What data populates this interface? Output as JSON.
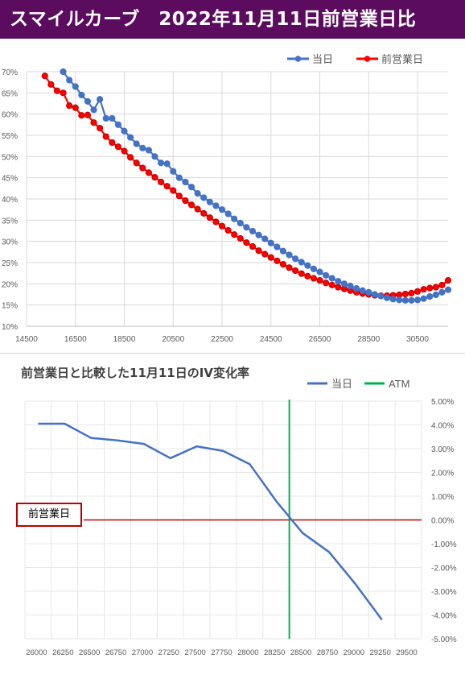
{
  "banner": {
    "title": "スマイルカーブ　2022年11月11日前営業日比"
  },
  "chart_data": [
    {
      "type": "line",
      "title": "",
      "xlim": [
        14500,
        31750
      ],
      "ylim": [
        10,
        70
      ],
      "x_ticks": [
        "14500",
        "16500",
        "18500",
        "20500",
        "22500",
        "24500",
        "26500",
        "28500",
        "30500"
      ],
      "y_ticks": [
        "10%",
        "15%",
        "20%",
        "25%",
        "30%",
        "35%",
        "40%",
        "45%",
        "50%",
        "55%",
        "60%",
        "65%",
        "70%"
      ],
      "legend": "top-right",
      "grid": true,
      "series": [
        {
          "name": "当日",
          "color": "#4472c4",
          "points": [
            [
              16000,
              70
            ],
            [
              16250,
              68
            ],
            [
              16500,
              66.5
            ],
            [
              16750,
              64.5
            ],
            [
              17000,
              63
            ],
            [
              17250,
              61
            ],
            [
              17500,
              63.5
            ],
            [
              17750,
              59
            ],
            [
              18000,
              59
            ],
            [
              18250,
              57.5
            ],
            [
              18500,
              56
            ],
            [
              18750,
              54.5
            ],
            [
              19000,
              53
            ],
            [
              19250,
              52
            ],
            [
              19500,
              51.5
            ],
            [
              19750,
              50
            ],
            [
              20000,
              48.5
            ],
            [
              20250,
              48.3
            ],
            [
              20500,
              46.5
            ],
            [
              20750,
              45
            ],
            [
              21000,
              44
            ],
            [
              21250,
              42.8
            ],
            [
              21500,
              41.3
            ],
            [
              21750,
              40.3
            ],
            [
              22000,
              39.3
            ],
            [
              22250,
              38.4
            ],
            [
              22500,
              37.5
            ],
            [
              22750,
              36.5
            ],
            [
              23000,
              35.3
            ],
            [
              23250,
              34.3
            ],
            [
              23500,
              33.3
            ],
            [
              23750,
              32.4
            ],
            [
              24000,
              31.5
            ],
            [
              24250,
              30.6
            ],
            [
              24500,
              29.6
            ],
            [
              24750,
              28.7
            ],
            [
              25000,
              27.7
            ],
            [
              25250,
              26.8
            ],
            [
              25500,
              25.9
            ],
            [
              25750,
              25.1
            ],
            [
              26000,
              24.3
            ],
            [
              26250,
              23.5
            ],
            [
              26500,
              22.8
            ],
            [
              26750,
              22.0
            ],
            [
              27000,
              21.3
            ],
            [
              27250,
              20.6
            ],
            [
              27500,
              20.0
            ],
            [
              27750,
              19.5
            ],
            [
              28000,
              18.9
            ],
            [
              28250,
              18.4
            ],
            [
              28500,
              18.0
            ],
            [
              28750,
              17.5
            ],
            [
              29000,
              17.1
            ],
            [
              29250,
              16.7
            ],
            [
              29500,
              16.4
            ],
            [
              29750,
              16.2
            ],
            [
              30000,
              16.1
            ],
            [
              30250,
              16.1
            ],
            [
              30500,
              16.2
            ],
            [
              30750,
              16.5
            ],
            [
              31000,
              17.0
            ],
            [
              31250,
              17.4
            ],
            [
              31500,
              18.0
            ],
            [
              31750,
              18.6
            ]
          ]
        },
        {
          "name": "前営業日",
          "color": "#ff0000",
          "points": [
            [
              15250,
              69
            ],
            [
              15500,
              67
            ],
            [
              15750,
              65.5
            ],
            [
              16000,
              65
            ],
            [
              16250,
              62
            ],
            [
              16500,
              61.5
            ],
            [
              16750,
              59.7
            ],
            [
              17000,
              59.8
            ],
            [
              17250,
              58
            ],
            [
              17500,
              56.7
            ],
            [
              17750,
              54.7
            ],
            [
              18000,
              53.3
            ],
            [
              18250,
              52.3
            ],
            [
              18500,
              51.3
            ],
            [
              18750,
              49.8
            ],
            [
              19000,
              48.5
            ],
            [
              19250,
              47.3
            ],
            [
              19500,
              46.2
            ],
            [
              19750,
              45.1
            ],
            [
              20000,
              44
            ],
            [
              20250,
              43
            ],
            [
              20500,
              42
            ],
            [
              20750,
              40.7
            ],
            [
              21000,
              39.6
            ],
            [
              21250,
              38.6
            ],
            [
              21500,
              37.6
            ],
            [
              21750,
              36.6
            ],
            [
              22000,
              35.6
            ],
            [
              22250,
              34.6
            ],
            [
              22500,
              33.6
            ],
            [
              22750,
              32.6
            ],
            [
              23000,
              31.6
            ],
            [
              23250,
              30.7
            ],
            [
              23500,
              29.7
            ],
            [
              23750,
              28.8
            ],
            [
              24000,
              27.8
            ],
            [
              24250,
              27.0
            ],
            [
              24500,
              26.2
            ],
            [
              24750,
              25.4
            ],
            [
              25000,
              24.6
            ],
            [
              25250,
              23.8
            ],
            [
              25500,
              23.1
            ],
            [
              25750,
              22.4
            ],
            [
              26000,
              21.8
            ],
            [
              26250,
              21.3
            ],
            [
              26500,
              20.8
            ],
            [
              26750,
              20.2
            ],
            [
              27000,
              19.7
            ],
            [
              27250,
              19.2
            ],
            [
              27500,
              18.8
            ],
            [
              27750,
              18.4
            ],
            [
              28000,
              18.0
            ],
            [
              28250,
              17.7
            ],
            [
              28500,
              17.5
            ],
            [
              28750,
              17.3
            ],
            [
              29000,
              17.2
            ],
            [
              29250,
              17.2
            ],
            [
              29500,
              17.3
            ],
            [
              29750,
              17.4
            ],
            [
              30000,
              17.6
            ],
            [
              30250,
              17.8
            ],
            [
              30500,
              18.2
            ],
            [
              30750,
              18.7
            ],
            [
              31000,
              19.0
            ],
            [
              31250,
              19.2
            ],
            [
              31500,
              19.7
            ],
            [
              31750,
              20.8
            ]
          ]
        }
      ]
    },
    {
      "type": "line",
      "title": "前営業日と比較した11月11日のIV変化率",
      "categories": [
        "26000",
        "26250",
        "26500",
        "26750",
        "27000",
        "27250",
        "27500",
        "27750",
        "28000",
        "28250",
        "28500",
        "28750",
        "29000",
        "29250",
        "29500"
      ],
      "ylim": [
        -5,
        5
      ],
      "y_ticks": [
        "5.00%",
        "4.00%",
        "3.00%",
        "2.00%",
        "1.00%",
        "0.00%",
        "-1.00%",
        "-2.00%",
        "-3.00%",
        "-4.00%",
        "-5.00%"
      ],
      "legend": "top-right",
      "grid": true,
      "series": [
        {
          "name": "当日",
          "color": "#4472c4",
          "values": [
            4.05,
            4.05,
            3.45,
            3.35,
            3.2,
            2.6,
            3.1,
            2.9,
            2.35,
            0.8,
            -0.55,
            -1.35,
            -2.7,
            -4.2,
            null
          ]
        },
        {
          "name": "ATM",
          "color": "#00b050",
          "atm_x": 28375
        }
      ],
      "baseline": {
        "label": "前営業日",
        "value": 0,
        "color": "#c00000"
      }
    }
  ]
}
